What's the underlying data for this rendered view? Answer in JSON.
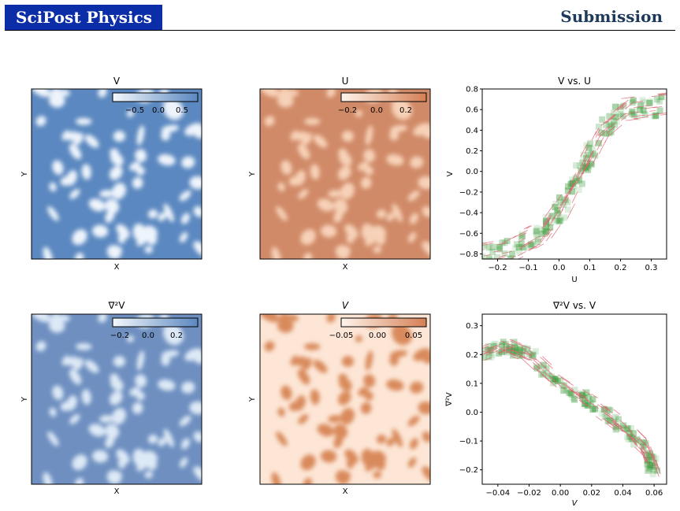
{
  "header": {
    "journal": "SciPost Physics",
    "section": "Submission"
  },
  "panels": [
    {
      "title": "V",
      "xlabel": "X",
      "ylabel": "Y",
      "cbar_ticks": [
        "−0.5",
        "0.0",
        "0.5"
      ],
      "colormap": "blue"
    },
    {
      "title": "U",
      "xlabel": "X",
      "ylabel": "Y",
      "cbar_ticks": [
        "−0.2",
        "0.0",
        "0.2"
      ],
      "colormap": "orange"
    },
    {
      "title": "∇²V",
      "xlabel": "X",
      "ylabel": "Y",
      "cbar_ticks": [
        "−0.2",
        "0.0",
        "0.2"
      ],
      "colormap": "blue"
    },
    {
      "title": "V",
      "xlabel": "X",
      "ylabel": "Y",
      "cbar_ticks": [
        "−0.05",
        "0.00",
        "0.05"
      ],
      "colormap": "orange"
    }
  ],
  "chart_data": [
    {
      "type": "scatter",
      "title": "V vs. U",
      "xlabel": "U",
      "ylabel": "V",
      "xlim": [
        -0.25,
        0.35
      ],
      "ylim": [
        -0.85,
        0.8
      ],
      "xticks": [
        -0.2,
        -0.1,
        0.0,
        0.1,
        0.2,
        0.3
      ],
      "yticks": [
        -0.8,
        -0.6,
        -0.4,
        -0.2,
        0.0,
        0.2,
        0.4,
        0.6,
        0.8
      ],
      "xtick_labels": [
        "−0.2",
        "−0.1",
        "0.0",
        "0.1",
        "0.2",
        "0.3"
      ],
      "ytick_labels": [
        "−0.8",
        "−0.6",
        "−0.4",
        "−0.2",
        "0.0",
        "0.2",
        "0.4",
        "0.6",
        "0.8"
      ],
      "centerline": [
        [
          -0.25,
          -0.82
        ],
        [
          -0.15,
          -0.76
        ],
        [
          -0.05,
          -0.6
        ],
        [
          0.02,
          -0.3
        ],
        [
          0.08,
          0.05
        ],
        [
          0.14,
          0.4
        ],
        [
          0.22,
          0.6
        ],
        [
          0.35,
          0.65
        ]
      ],
      "band_halfwidth": 0.06,
      "colors": {
        "density": "#3a9a3a",
        "quiver": "#e06070"
      }
    },
    {
      "type": "scatter",
      "title": "∇²V vs. V",
      "xlabel": "V",
      "ylabel": "∇²V",
      "xlim": [
        -0.05,
        0.068
      ],
      "ylim": [
        -0.25,
        0.34
      ],
      "xticks": [
        -0.04,
        -0.02,
        0.0,
        0.02,
        0.04,
        0.06
      ],
      "yticks": [
        -0.2,
        -0.1,
        0.0,
        0.1,
        0.2,
        0.3
      ],
      "xtick_labels": [
        "−0.04",
        "−0.02",
        "0.00",
        "0.02",
        "0.04",
        "0.06"
      ],
      "ytick_labels": [
        "−0.2",
        "−0.1",
        "0.0",
        "0.1",
        "0.2",
        "0.3"
      ],
      "centerline": [
        [
          -0.05,
          0.2
        ],
        [
          -0.035,
          0.23
        ],
        [
          -0.02,
          0.2
        ],
        [
          0.0,
          0.1
        ],
        [
          0.02,
          0.03
        ],
        [
          0.04,
          -0.05
        ],
        [
          0.055,
          -0.13
        ],
        [
          0.06,
          -0.2
        ]
      ],
      "band_halfwidth": 0.06,
      "colors": {
        "density": "#3a9a3a",
        "quiver": "#e06070"
      }
    }
  ]
}
